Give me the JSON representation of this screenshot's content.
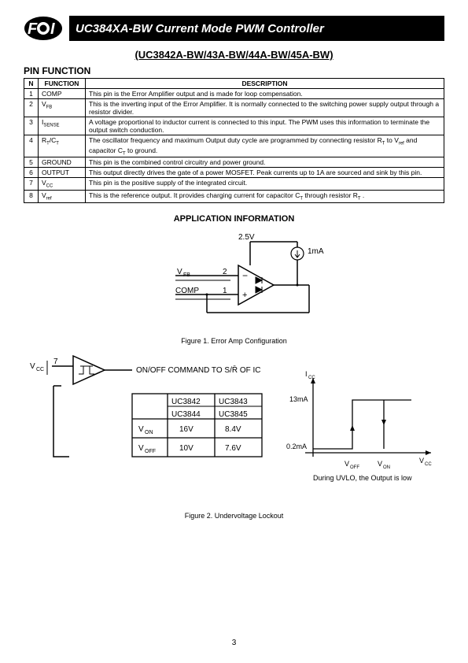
{
  "header": {
    "title": "UC384XA-BW Current Mode PWM Controller",
    "subtitle": "(UC3842A-BW/43A-BW/44A-BW/45A-BW)"
  },
  "pin_function": {
    "section_title": "PIN FUNCTION",
    "headers": [
      "N",
      "FUNCTION",
      "DESCRIPTION"
    ],
    "rows": [
      {
        "n": "1",
        "func": "COMP",
        "desc": "This pin is the Error Amplifier output and is made for loop compensation."
      },
      {
        "n": "2",
        "func": "V_FB",
        "desc": "This is the inverting input of the Error Amplifier. It is normally connected to the switching power supply output through a resistor divider."
      },
      {
        "n": "3",
        "func": "I_SENSE",
        "desc": "A voltage proportional to inductor current is connected to this input. The PWM uses this information to terminate the output switch conduction."
      },
      {
        "n": "4",
        "func": "R_T/C_T",
        "desc": "The oscillator frequency and maximum Output duty cycle are programmed by connecting resistor R_T to V_ref and capacitor C_T to ground."
      },
      {
        "n": "5",
        "func": "GROUND",
        "desc": "This pin is the combined control circuitry and power ground."
      },
      {
        "n": "6",
        "func": "OUTPUT",
        "desc": "This output directly drives the gate of a power MOSFET. Peak currents up to 1A are sourced and sink by this pin."
      },
      {
        "n": "7",
        "func": "V_CC",
        "desc": "This pin is the positive supply of the integrated circuit."
      },
      {
        "n": "8",
        "func": "V_ref",
        "desc": "This is the reference output. It provides charging current for capacitor C_T through resistor R_T ."
      }
    ]
  },
  "app_info": {
    "title": "APPLICATION INFORMATION"
  },
  "figure1": {
    "caption": "Figure 1. Error Amp Configuration",
    "labels": {
      "vref": "2.5V",
      "current": "1mA",
      "vfb": "V_FB",
      "comp": "COMP",
      "pin2": "2",
      "pin1": "1"
    }
  },
  "figure2": {
    "caption": "Figure 2. Undervoltage Lockout",
    "labels": {
      "vcc_pin": "V_CC",
      "pin7": "7",
      "command": "ON/OFF COMMAND TO S/R̄ OF IC",
      "icc": "I_CC",
      "i_hi": "13mA",
      "i_lo": "0.2mA",
      "voff": "V_OFF",
      "von": "V_ON",
      "vcc_axis": "V_CC",
      "note": "During UVLO, the Output is low"
    },
    "table": {
      "parts": [
        [
          "UC3842",
          "UC3843"
        ],
        [
          "UC3844",
          "UC3845"
        ]
      ],
      "rows": [
        {
          "label": "V_ON",
          "c1": "16V",
          "c2": "8.4V"
        },
        {
          "label": "V_OFF",
          "c1": "10V",
          "c2": "7.6V"
        }
      ]
    }
  },
  "page_number": "3"
}
